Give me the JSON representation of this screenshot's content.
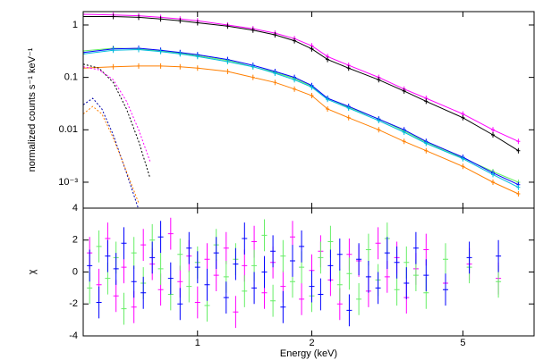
{
  "chart_data": [
    {
      "type": "line",
      "xscale": "log",
      "yscale": "log",
      "ylabel": "normalized counts s⁻¹ keV⁻¹",
      "xlim": [
        0.5,
        7.7
      ],
      "ylim": [
        0.00032,
        1.8
      ],
      "xticks": [
        1,
        2,
        5
      ],
      "show_xtick_labels": false,
      "yticks": [
        1,
        0.1,
        0.01,
        {
          "value": 0.001,
          "label": "10⁻³"
        }
      ],
      "x": [
        0.5,
        0.6,
        0.7,
        0.8,
        0.9,
        1.0,
        1.2,
        1.4,
        1.6,
        1.8,
        2.0,
        2.2,
        2.5,
        3.0,
        3.5,
        4.0,
        5.0,
        6.0,
        7.0
      ],
      "series": [
        {
          "color": "#ff00ff",
          "values": [
            1.6,
            1.55,
            1.5,
            1.4,
            1.3,
            1.2,
            1.0,
            0.85,
            0.7,
            0.55,
            0.4,
            0.25,
            0.17,
            0.1,
            0.06,
            0.04,
            0.02,
            0.01,
            0.006
          ]
        },
        {
          "color": "#000000",
          "values": [
            1.45,
            1.45,
            1.4,
            1.3,
            1.2,
            1.1,
            0.95,
            0.8,
            0.65,
            0.5,
            0.35,
            0.22,
            0.15,
            0.09,
            0.055,
            0.035,
            0.017,
            0.008,
            0.004
          ]
        },
        {
          "color": "#66ee66",
          "values": [
            0.32,
            0.36,
            0.35,
            0.32,
            0.29,
            0.26,
            0.21,
            0.16,
            0.125,
            0.095,
            0.068,
            0.04,
            0.027,
            0.016,
            0.0095,
            0.0058,
            0.0029,
            0.0016,
            0.001
          ]
        },
        {
          "color": "#0000ff",
          "values": [
            0.3,
            0.35,
            0.36,
            0.33,
            0.3,
            0.27,
            0.22,
            0.17,
            0.13,
            0.1,
            0.07,
            0.04,
            0.028,
            0.016,
            0.01,
            0.006,
            0.003,
            0.0015,
            0.0009
          ]
        },
        {
          "color": "#00bbdd",
          "values": [
            0.28,
            0.33,
            0.34,
            0.31,
            0.28,
            0.25,
            0.2,
            0.16,
            0.12,
            0.09,
            0.065,
            0.038,
            0.026,
            0.015,
            0.009,
            0.0055,
            0.0028,
            0.0014,
            0.0008
          ]
        },
        {
          "color": "#ff7f00",
          "values": [
            0.15,
            0.16,
            0.165,
            0.165,
            0.16,
            0.15,
            0.13,
            0.1,
            0.08,
            0.06,
            0.045,
            0.025,
            0.017,
            0.01,
            0.006,
            0.004,
            0.002,
            0.001,
            0.0006
          ]
        },
        {
          "color": "#000000",
          "style": "dotted",
          "x": [
            0.5,
            0.55,
            0.6,
            0.65,
            0.7,
            0.75
          ],
          "values": [
            0.18,
            0.15,
            0.08,
            0.025,
            0.006,
            0.0012
          ]
        },
        {
          "color": "#ff00ff",
          "style": "dotted",
          "x": [
            0.5,
            0.55,
            0.6,
            0.65,
            0.7,
            0.75
          ],
          "values": [
            0.16,
            0.14,
            0.09,
            0.035,
            0.01,
            0.0025
          ]
        },
        {
          "color": "#0000aa",
          "style": "dotted",
          "x": [
            0.5,
            0.53,
            0.56,
            0.6,
            0.65,
            0.7
          ],
          "values": [
            0.03,
            0.04,
            0.025,
            0.008,
            0.0015,
            0.0003
          ]
        },
        {
          "color": "#ff7f00",
          "style": "dotted",
          "x": [
            0.5,
            0.53,
            0.56,
            0.6,
            0.65,
            0.7
          ],
          "values": [
            0.02,
            0.028,
            0.02,
            0.007,
            0.0016,
            0.0004
          ]
        }
      ]
    },
    {
      "type": "residual",
      "xscale": "log",
      "yscale": "linear",
      "xlabel": "Energy (keV)",
      "ylabel": "χ",
      "xlim": [
        0.5,
        7.7
      ],
      "ylim": [
        -4,
        4
      ],
      "xticks": [
        1,
        2,
        5
      ],
      "show_xtick_labels": true,
      "yticks": [
        4,
        2,
        0,
        -2,
        -4
      ],
      "x": [
        0.52,
        0.55,
        0.58,
        0.61,
        0.64,
        0.68,
        0.72,
        0.76,
        0.8,
        0.85,
        0.9,
        0.95,
        1.0,
        1.06,
        1.12,
        1.19,
        1.26,
        1.33,
        1.41,
        1.5,
        1.58,
        1.68,
        1.78,
        1.88,
        2.0,
        2.11,
        2.24,
        2.37,
        2.51,
        2.66,
        2.82,
        2.99,
        3.16,
        3.35,
        3.55,
        3.76,
        4.0,
        4.5,
        5.2,
        6.2
      ],
      "series": [
        {
          "color": "#ff00ff",
          "values": [
            1.2,
            -0.8,
            2.1,
            -1.5,
            0.3,
            -2.2,
            1.7,
            0.5,
            -1.1,
            2.4,
            -0.6,
            1.0,
            -1.9,
            0.8,
            -0.2,
            1.5,
            -2.5,
            0.4,
            1.9,
            -1.3,
            0.6,
            -0.9,
            2.2,
            -1.7,
            0.1,
            1.3,
            -0.5,
            -2.0,
            1.1,
            0.7,
            -1.2,
            1.8,
            -0.3,
            0.9,
            -1.6,
            0.2,
            1.4,
            -0.7,
            0.5,
            -0.4
          ]
        },
        {
          "color": "#66ee66",
          "values": [
            -1.0,
            1.6,
            -0.4,
            0.9,
            -2.3,
            1.2,
            -0.7,
            2.0,
            0.2,
            -1.4,
            1.1,
            -0.9,
            0.6,
            -2.1,
            1.7,
            -0.3,
            0.8,
            -1.2,
            0.4,
            2.3,
            -1.8,
            1.0,
            -0.6,
            0.3,
            -1.5,
            0.9,
            1.9,
            -0.8,
            -0.1,
            -1.7,
            1.4,
            -0.5,
            2.1,
            -1.1,
            0.6,
            -0.2,
            -1.3,
            0.8,
            0.3,
            -0.6
          ]
        },
        {
          "color": "#0000ff",
          "values": [
            0.4,
            -1.9,
            1.0,
            0.2,
            1.8,
            -0.6,
            -1.3,
            0.9,
            2.2,
            -0.4,
            -2.0,
            1.5,
            0.3,
            -0.8,
            1.2,
            -1.6,
            0.5,
            2.1,
            -1.0,
            0.0,
            1.3,
            -2.2,
            0.7,
            1.6,
            -0.9,
            -1.4,
            0.4,
            1.1,
            -2.4,
            0.8,
            -0.3,
            -1.0,
            1.2,
            0.6,
            -0.7,
            1.5,
            -0.2,
            -1.1,
            0.9,
            1.0
          ]
        }
      ]
    }
  ]
}
